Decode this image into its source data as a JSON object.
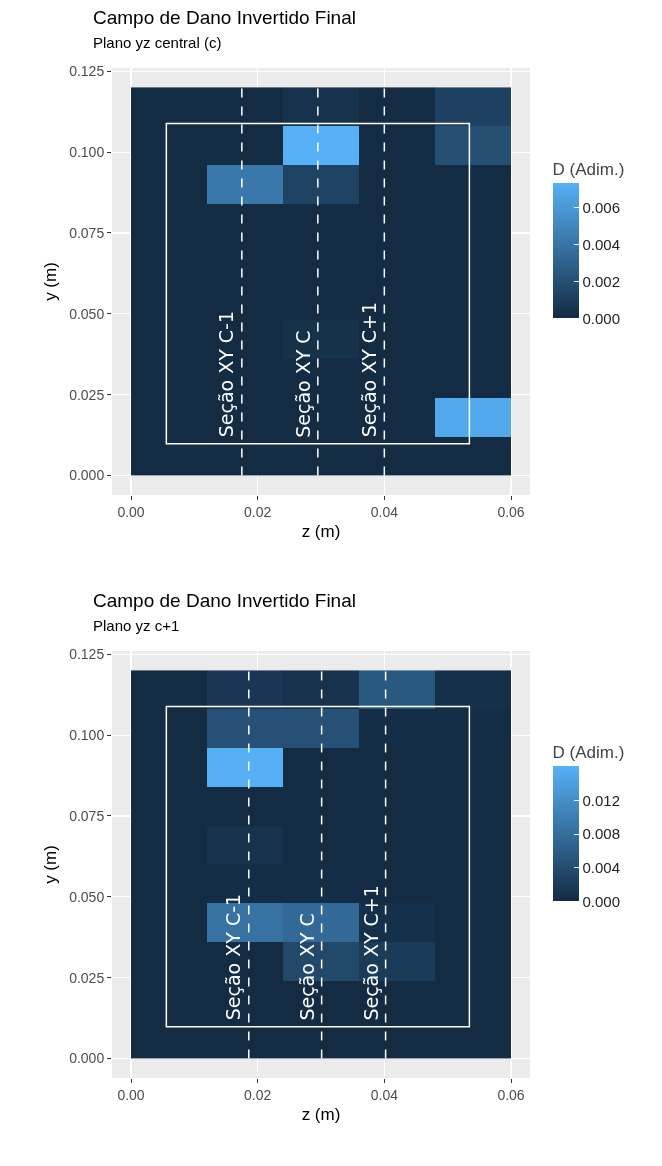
{
  "chart_data": [
    {
      "type": "heatmap",
      "title": "Campo de Dano Invertido Final",
      "subtitle": "Plano yz central (c)",
      "xlabel": "z (m)",
      "ylabel": "y (m)",
      "clabel": "D (Adim.)",
      "x": [
        0.006,
        0.018,
        0.03,
        0.042,
        0.054
      ],
      "y": [
        0.114,
        0.102,
        0.09,
        0.078,
        0.066,
        0.054,
        0.042,
        0.03,
        0.018,
        0.006
      ],
      "cells": [
        [
          0,
          0,
          0.0004,
          0,
          0.0012
        ],
        [
          0,
          0,
          0.0073,
          0,
          0.002
        ],
        [
          0,
          0.0042,
          0.0013,
          0,
          0
        ],
        [
          0,
          0,
          0,
          0,
          0
        ],
        [
          0,
          0,
          0,
          0,
          0
        ],
        [
          0,
          0,
          0,
          0,
          0
        ],
        [
          0,
          0,
          0.0003,
          0,
          0
        ],
        [
          0,
          0,
          0,
          0,
          0
        ],
        [
          0,
          0,
          0,
          0,
          0.0068
        ],
        [
          0,
          0,
          0,
          0,
          0
        ]
      ],
      "clim": [
        0,
        0.0073
      ],
      "cticks": [
        {
          "value": 0,
          "label": "0.000"
        },
        {
          "value": 0.002,
          "label": "0.002"
        },
        {
          "value": 0.004,
          "label": "0.004"
        },
        {
          "value": 0.006,
          "label": "0.006"
        }
      ],
      "xlim": [
        -0.003,
        0.063
      ],
      "ylim": [
        -0.006,
        0.126
      ],
      "xticks": [
        {
          "value": 0,
          "label": "0.00"
        },
        {
          "value": 0.02,
          "label": "0.02"
        },
        {
          "value": 0.04,
          "label": "0.04"
        },
        {
          "value": 0.06,
          "label": "0.06"
        }
      ],
      "yticks": [
        {
          "value": 0,
          "label": "0.000"
        },
        {
          "value": 0.025,
          "label": "0.025"
        },
        {
          "value": 0.05,
          "label": "0.050"
        },
        {
          "value": 0.075,
          "label": "0.075"
        },
        {
          "value": 0.1,
          "label": "0.100"
        },
        {
          "value": 0.125,
          "label": "0.125"
        }
      ],
      "ref_lines": [
        {
          "axis": "x",
          "value": 0.0175,
          "label": "Seção XY C-1",
          "color": "#ffffff",
          "line_style": "dashed"
        },
        {
          "axis": "x",
          "value": 0.0295,
          "label": "Seção XY C",
          "color": "#ffffff",
          "line_style": "dashed"
        },
        {
          "axis": "x",
          "value": 0.04,
          "label": "Seção XY C+1",
          "color": "#ffffff",
          "line_style": "dashed"
        }
      ],
      "grid": true
    },
    {
      "type": "heatmap",
      "title": "Campo de Dano Invertido Final",
      "subtitle": "Plano yz c+1",
      "xlabel": "z (m)",
      "ylabel": "y (m)",
      "clabel": "D (Adim.)",
      "x": [
        0.006,
        0.018,
        0.03,
        0.042,
        0.054
      ],
      "y": [
        0.114,
        0.102,
        0.09,
        0.078,
        0.066,
        0.054,
        0.042,
        0.03,
        0.018,
        0.006
      ],
      "cells": [
        [
          0,
          0.0015,
          0.0008,
          0.0055,
          0.0006
        ],
        [
          0,
          0.0045,
          0.0045,
          0.0003,
          0.0003
        ],
        [
          0,
          0.016,
          0,
          0,
          0
        ],
        [
          0,
          0,
          0,
          0,
          0
        ],
        [
          0,
          0.0008,
          0,
          0,
          0
        ],
        [
          0,
          0.0003,
          0.0003,
          0,
          0
        ],
        [
          0,
          0.0085,
          0.0075,
          0.0006,
          0
        ],
        [
          0,
          0,
          0.0035,
          0.002,
          0
        ],
        [
          0,
          0,
          0,
          0,
          0
        ],
        [
          0,
          0,
          0,
          0,
          0
        ]
      ],
      "clim": [
        0,
        0.0161
      ],
      "cticks": [
        {
          "value": 0,
          "label": "0.000"
        },
        {
          "value": 0.004,
          "label": "0.004"
        },
        {
          "value": 0.008,
          "label": "0.008"
        },
        {
          "value": 0.012,
          "label": "0.012"
        }
      ],
      "xlim": [
        -0.003,
        0.063
      ],
      "ylim": [
        -0.006,
        0.126
      ],
      "xticks": [
        {
          "value": 0,
          "label": "0.00"
        },
        {
          "value": 0.02,
          "label": "0.02"
        },
        {
          "value": 0.04,
          "label": "0.04"
        },
        {
          "value": 0.06,
          "label": "0.06"
        }
      ],
      "yticks": [
        {
          "value": 0,
          "label": "0.000"
        },
        {
          "value": 0.025,
          "label": "0.025"
        },
        {
          "value": 0.05,
          "label": "0.050"
        },
        {
          "value": 0.075,
          "label": "0.075"
        },
        {
          "value": 0.1,
          "label": "0.100"
        },
        {
          "value": 0.125,
          "label": "0.125"
        }
      ],
      "ref_lines": [
        {
          "axis": "x",
          "value": 0.0186,
          "label": "Seção XY C-1",
          "color": "#ffffff",
          "line_style": "dashed"
        },
        {
          "axis": "x",
          "value": 0.0301,
          "label": "Seção XY C",
          "color": "#ffffff",
          "line_style": "dashed"
        },
        {
          "axis": "x",
          "value": 0.0402,
          "label": "Seção XY C+1",
          "color": "#ffffff",
          "line_style": "dashed"
        }
      ],
      "grid": true
    }
  ]
}
